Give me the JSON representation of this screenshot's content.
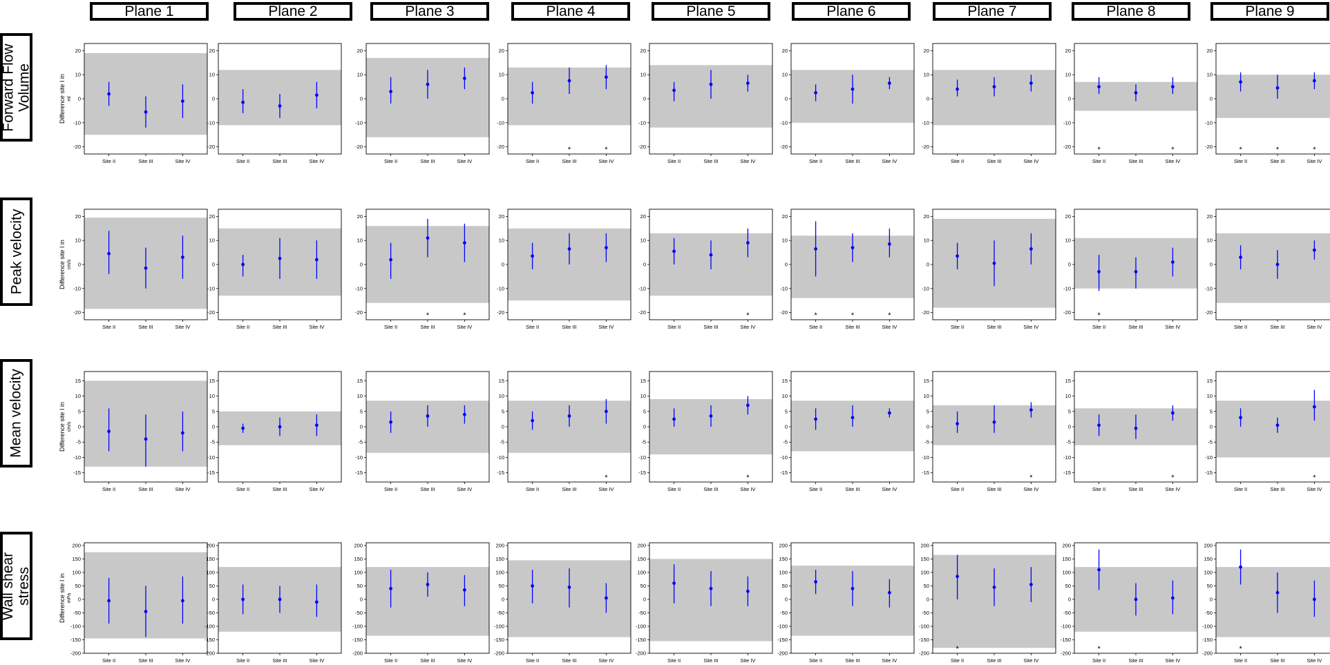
{
  "columns": [
    "Plane 1",
    "Plane 2",
    "Plane 3",
    "Plane 4",
    "Plane 5",
    "Plane 6",
    "Plane 7",
    "Plane 8",
    "Plane 9"
  ],
  "rows": [
    {
      "header": "Forward Flow\nVolume",
      "ylabel": "Difference site I in",
      "unit": "ml"
    },
    {
      "header": "Peak velocity",
      "ylabel": "Difference site I in",
      "unit": "cm/s"
    },
    {
      "header": "Mean velocity",
      "ylabel": "Difference site I in",
      "unit": "cm/s"
    },
    {
      "header": "Wall shear\nstress",
      "ylabel": "Difference site I in",
      "unit": "mPa"
    }
  ],
  "colors": {
    "point": "#0000ff",
    "band": "#c8c8c8",
    "axis": "#000000"
  },
  "chart_data": [
    {
      "type": "scatter",
      "row": 0,
      "categories": [
        "Site II",
        "Site III",
        "Site IV"
      ],
      "ylim": [
        -23,
        23
      ],
      "yticks": [
        -20,
        -10,
        0,
        10,
        20
      ],
      "grid": false,
      "panels": [
        {
          "plane": "Plane 1",
          "band": [
            -15,
            19
          ],
          "points": [
            {
              "y": 2,
              "lo": -3,
              "hi": 7
            },
            {
              "y": -5.5,
              "lo": -12,
              "hi": 1
            },
            {
              "y": -1,
              "lo": -8,
              "hi": 6
            }
          ],
          "stars": []
        },
        {
          "plane": "Plane 2",
          "band": [
            -11,
            12
          ],
          "points": [
            {
              "y": -1.5,
              "lo": -6,
              "hi": 4
            },
            {
              "y": -3,
              "lo": -8,
              "hi": 2
            },
            {
              "y": 1.5,
              "lo": -4,
              "hi": 7
            }
          ],
          "stars": []
        },
        {
          "plane": "Plane 3",
          "band": [
            -16,
            17
          ],
          "points": [
            {
              "y": 3,
              "lo": -2,
              "hi": 9
            },
            {
              "y": 6,
              "lo": 0,
              "hi": 12
            },
            {
              "y": 8.5,
              "lo": 4,
              "hi": 13
            }
          ],
          "stars": []
        },
        {
          "plane": "Plane 4",
          "band": [
            -11,
            13
          ],
          "points": [
            {
              "y": 2.5,
              "lo": -2,
              "hi": 7
            },
            {
              "y": 7.5,
              "lo": 2,
              "hi": 13
            },
            {
              "y": 9,
              "lo": 4,
              "hi": 14
            }
          ],
          "stars": [
            1,
            2
          ]
        },
        {
          "plane": "Plane 5",
          "band": [
            -12,
            14
          ],
          "points": [
            {
              "y": 3.5,
              "lo": -1,
              "hi": 7
            },
            {
              "y": 6,
              "lo": 0,
              "hi": 12
            },
            {
              "y": 6.5,
              "lo": 3,
              "hi": 10
            }
          ],
          "stars": []
        },
        {
          "plane": "Plane 6",
          "band": [
            -10,
            12
          ],
          "points": [
            {
              "y": 2.5,
              "lo": -1,
              "hi": 6
            },
            {
              "y": 4,
              "lo": -2,
              "hi": 10
            },
            {
              "y": 6.5,
              "lo": 4,
              "hi": 9
            }
          ],
          "stars": []
        },
        {
          "plane": "Plane 7",
          "band": [
            -11,
            12
          ],
          "points": [
            {
              "y": 4,
              "lo": 1,
              "hi": 8
            },
            {
              "y": 5,
              "lo": 1,
              "hi": 9
            },
            {
              "y": 6.5,
              "lo": 3,
              "hi": 10
            }
          ],
          "stars": []
        },
        {
          "plane": "Plane 8",
          "band": [
            -5,
            7
          ],
          "points": [
            {
              "y": 5,
              "lo": 2,
              "hi": 9
            },
            {
              "y": 2.5,
              "lo": -1,
              "hi": 6
            },
            {
              "y": 5,
              "lo": 2,
              "hi": 9
            }
          ],
          "stars": [
            0,
            2
          ]
        },
        {
          "plane": "Plane 9",
          "band": [
            -8,
            10
          ],
          "points": [
            {
              "y": 7,
              "lo": 3,
              "hi": 11
            },
            {
              "y": 4.5,
              "lo": 0,
              "hi": 10
            },
            {
              "y": 7.5,
              "lo": 4,
              "hi": 11
            }
          ],
          "stars": [
            0,
            1,
            2
          ]
        }
      ]
    },
    {
      "type": "scatter",
      "row": 1,
      "categories": [
        "Site II",
        "Site III",
        "Site IV"
      ],
      "ylim": [
        -23,
        23
      ],
      "yticks": [
        -20,
        -10,
        0,
        10,
        20
      ],
      "grid": false,
      "panels": [
        {
          "plane": "Plane 1",
          "band": [
            -18.5,
            19.5
          ],
          "points": [
            {
              "y": 4.5,
              "lo": -4,
              "hi": 14
            },
            {
              "y": -1.5,
              "lo": -10,
              "hi": 7
            },
            {
              "y": 3,
              "lo": -6,
              "hi": 12
            }
          ],
          "stars": []
        },
        {
          "plane": "Plane 2",
          "band": [
            -13,
            15
          ],
          "points": [
            {
              "y": 0,
              "lo": -5,
              "hi": 4
            },
            {
              "y": 2.5,
              "lo": -6,
              "hi": 11
            },
            {
              "y": 2,
              "lo": -6,
              "hi": 10
            }
          ],
          "stars": []
        },
        {
          "plane": "Plane 3",
          "band": [
            -16,
            16
          ],
          "points": [
            {
              "y": 2,
              "lo": -6,
              "hi": 9
            },
            {
              "y": 11,
              "lo": 3,
              "hi": 19
            },
            {
              "y": 9,
              "lo": 1,
              "hi": 17
            }
          ],
          "stars": [
            1,
            2
          ]
        },
        {
          "plane": "Plane 4",
          "band": [
            -15,
            15
          ],
          "points": [
            {
              "y": 3.5,
              "lo": -2,
              "hi": 9
            },
            {
              "y": 6.5,
              "lo": 0,
              "hi": 13
            },
            {
              "y": 7,
              "lo": 1,
              "hi": 13
            }
          ],
          "stars": []
        },
        {
          "plane": "Plane 5",
          "band": [
            -13,
            13
          ],
          "points": [
            {
              "y": 5.5,
              "lo": 0,
              "hi": 11
            },
            {
              "y": 4,
              "lo": -2,
              "hi": 10
            },
            {
              "y": 9,
              "lo": 3,
              "hi": 15
            }
          ],
          "stars": [
            2
          ]
        },
        {
          "plane": "Plane 6",
          "band": [
            -14,
            12
          ],
          "points": [
            {
              "y": 6.5,
              "lo": -5,
              "hi": 18
            },
            {
              "y": 7,
              "lo": 1,
              "hi": 13
            },
            {
              "y": 8.5,
              "lo": 3,
              "hi": 15
            }
          ],
          "stars": [
            0,
            1,
            2
          ]
        },
        {
          "plane": "Plane 7",
          "band": [
            -18,
            19
          ],
          "points": [
            {
              "y": 3.5,
              "lo": -2,
              "hi": 9
            },
            {
              "y": 0.5,
              "lo": -9,
              "hi": 10
            },
            {
              "y": 6.5,
              "lo": 0,
              "hi": 13
            }
          ],
          "stars": []
        },
        {
          "plane": "Plane 8",
          "band": [
            -10,
            11
          ],
          "points": [
            {
              "y": -3,
              "lo": -11,
              "hi": 4
            },
            {
              "y": -3,
              "lo": -10,
              "hi": 3
            },
            {
              "y": 1,
              "lo": -5,
              "hi": 7
            }
          ],
          "stars": [
            0
          ]
        },
        {
          "plane": "Plane 9",
          "band": [
            -16,
            13
          ],
          "points": [
            {
              "y": 3,
              "lo": -2,
              "hi": 8
            },
            {
              "y": 0,
              "lo": -6,
              "hi": 6
            },
            {
              "y": 6,
              "lo": 2,
              "hi": 10
            }
          ],
          "stars": []
        }
      ]
    },
    {
      "type": "scatter",
      "row": 2,
      "categories": [
        "Site II",
        "Site III",
        "Site IV"
      ],
      "ylim": [
        -18,
        18
      ],
      "yticks": [
        -15,
        -10,
        -5,
        0,
        5,
        10,
        15
      ],
      "grid": false,
      "panels": [
        {
          "plane": "Plane 1",
          "band": [
            -13,
            15
          ],
          "points": [
            {
              "y": -1.5,
              "lo": -8,
              "hi": 6
            },
            {
              "y": -4,
              "lo": -13,
              "hi": 4
            },
            {
              "y": -2,
              "lo": -8,
              "hi": 5
            }
          ],
          "stars": []
        },
        {
          "plane": "Plane 2",
          "band": [
            -6,
            5
          ],
          "points": [
            {
              "y": -0.5,
              "lo": -2,
              "hi": 1
            },
            {
              "y": 0,
              "lo": -3,
              "hi": 3
            },
            {
              "y": 0.5,
              "lo": -3,
              "hi": 4
            }
          ],
          "stars": []
        },
        {
          "plane": "Plane 3",
          "band": [
            -8.5,
            8.5
          ],
          "points": [
            {
              "y": 1.5,
              "lo": -2,
              "hi": 5
            },
            {
              "y": 3.5,
              "lo": 0,
              "hi": 7
            },
            {
              "y": 4,
              "lo": 1,
              "hi": 7
            }
          ],
          "stars": []
        },
        {
          "plane": "Plane 4",
          "band": [
            -8.5,
            8.5
          ],
          "points": [
            {
              "y": 2,
              "lo": -1,
              "hi": 5
            },
            {
              "y": 3.5,
              "lo": 0,
              "hi": 7
            },
            {
              "y": 5,
              "lo": 1,
              "hi": 9
            }
          ],
          "stars": [
            2
          ]
        },
        {
          "plane": "Plane 5",
          "band": [
            -9,
            9
          ],
          "points": [
            {
              "y": 2.5,
              "lo": 0,
              "hi": 6
            },
            {
              "y": 3.5,
              "lo": 0,
              "hi": 7
            },
            {
              "y": 7,
              "lo": 4,
              "hi": 10
            }
          ],
          "stars": [
            2
          ]
        },
        {
          "plane": "Plane 6",
          "band": [
            -8,
            8.5
          ],
          "points": [
            {
              "y": 2.5,
              "lo": -1,
              "hi": 6
            },
            {
              "y": 3,
              "lo": 0,
              "hi": 7
            },
            {
              "y": 4.5,
              "lo": 3,
              "hi": 6
            }
          ],
          "stars": []
        },
        {
          "plane": "Plane 7",
          "band": [
            -6,
            7
          ],
          "points": [
            {
              "y": 1,
              "lo": -2,
              "hi": 5
            },
            {
              "y": 1.5,
              "lo": -2,
              "hi": 7
            },
            {
              "y": 5.5,
              "lo": 3,
              "hi": 8
            }
          ],
          "stars": [
            2
          ]
        },
        {
          "plane": "Plane 8",
          "band": [
            -6,
            6
          ],
          "points": [
            {
              "y": 0.5,
              "lo": -3,
              "hi": 4
            },
            {
              "y": -0.5,
              "lo": -4,
              "hi": 4
            },
            {
              "y": 4.5,
              "lo": 2,
              "hi": 7
            }
          ],
          "stars": [
            2
          ]
        },
        {
          "plane": "Plane 9",
          "band": [
            -10,
            8.5
          ],
          "points": [
            {
              "y": 3,
              "lo": 0,
              "hi": 6
            },
            {
              "y": 0.5,
              "lo": -2,
              "hi": 3
            },
            {
              "y": 6.5,
              "lo": 2,
              "hi": 12
            }
          ],
          "stars": [
            2
          ]
        }
      ]
    },
    {
      "type": "scatter",
      "row": 3,
      "categories": [
        "Site II",
        "Site III",
        "Site IV"
      ],
      "ylim": [
        -200,
        210
      ],
      "yticks": [
        -200,
        -150,
        -100,
        -50,
        0,
        50,
        100,
        150,
        200
      ],
      "grid": false,
      "panels": [
        {
          "plane": "Plane 1",
          "band": [
            -145,
            175
          ],
          "points": [
            {
              "y": -5,
              "lo": -90,
              "hi": 80
            },
            {
              "y": -45,
              "lo": -140,
              "hi": 50
            },
            {
              "y": -5,
              "lo": -90,
              "hi": 85
            }
          ],
          "stars": []
        },
        {
          "plane": "Plane 2",
          "band": [
            -120,
            120
          ],
          "points": [
            {
              "y": 0,
              "lo": -55,
              "hi": 55
            },
            {
              "y": 0,
              "lo": -50,
              "hi": 50
            },
            {
              "y": -10,
              "lo": -65,
              "hi": 55
            }
          ],
          "stars": []
        },
        {
          "plane": "Plane 3",
          "band": [
            -135,
            120
          ],
          "points": [
            {
              "y": 40,
              "lo": -30,
              "hi": 110
            },
            {
              "y": 55,
              "lo": 10,
              "hi": 100
            },
            {
              "y": 35,
              "lo": -25,
              "hi": 90
            }
          ],
          "stars": []
        },
        {
          "plane": "Plane 4",
          "band": [
            -140,
            145
          ],
          "points": [
            {
              "y": 50,
              "lo": -15,
              "hi": 110
            },
            {
              "y": 45,
              "lo": -30,
              "hi": 115
            },
            {
              "y": 5,
              "lo": -50,
              "hi": 60
            }
          ],
          "stars": []
        },
        {
          "plane": "Plane 5",
          "band": [
            -155,
            150
          ],
          "points": [
            {
              "y": 60,
              "lo": -15,
              "hi": 130
            },
            {
              "y": 40,
              "lo": -25,
              "hi": 105
            },
            {
              "y": 30,
              "lo": -25,
              "hi": 85
            }
          ],
          "stars": []
        },
        {
          "plane": "Plane 6",
          "band": [
            -135,
            125
          ],
          "points": [
            {
              "y": 65,
              "lo": 20,
              "hi": 110
            },
            {
              "y": 40,
              "lo": -25,
              "hi": 105
            },
            {
              "y": 25,
              "lo": -30,
              "hi": 75
            }
          ],
          "stars": []
        },
        {
          "plane": "Plane 7",
          "band": [
            -180,
            165
          ],
          "points": [
            {
              "y": 85,
              "lo": 0,
              "hi": 165
            },
            {
              "y": 45,
              "lo": -25,
              "hi": 115
            },
            {
              "y": 55,
              "lo": -10,
              "hi": 120
            }
          ],
          "stars": [
            0
          ]
        },
        {
          "plane": "Plane 8",
          "band": [
            -120,
            120
          ],
          "points": [
            {
              "y": 110,
              "lo": 35,
              "hi": 185
            },
            {
              "y": 0,
              "lo": -60,
              "hi": 60
            },
            {
              "y": 5,
              "lo": -55,
              "hi": 70
            }
          ],
          "stars": [
            0
          ]
        },
        {
          "plane": "Plane 9",
          "band": [
            -140,
            120
          ],
          "points": [
            {
              "y": 120,
              "lo": 55,
              "hi": 185
            },
            {
              "y": 25,
              "lo": -50,
              "hi": 100
            },
            {
              "y": 0,
              "lo": -65,
              "hi": 70
            }
          ],
          "stars": [
            0
          ]
        }
      ]
    }
  ]
}
